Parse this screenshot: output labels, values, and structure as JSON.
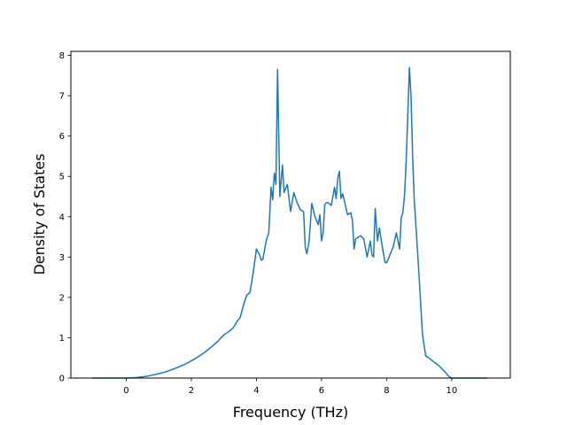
{
  "chart_data": {
    "type": "line",
    "xlabel": "Frequency (THz)",
    "ylabel": "Density of States",
    "xlim": [
      -1.7,
      11.8
    ],
    "ylim": [
      0,
      8.1
    ],
    "x_ticks": [
      0,
      2,
      4,
      6,
      8,
      10
    ],
    "y_ticks": [
      0,
      1,
      2,
      3,
      4,
      5,
      6,
      7,
      8
    ],
    "grid": false,
    "series": [
      {
        "color": "#1f77b4",
        "x": [
          -1.05,
          -0.5,
          0.0,
          0.3,
          0.6,
          0.9,
          1.2,
          1.5,
          1.8,
          2.1,
          2.4,
          2.6,
          2.8,
          3.0,
          3.2,
          3.3,
          3.4,
          3.5,
          3.6,
          3.7,
          3.8,
          3.9,
          4.0,
          4.1,
          4.15,
          4.2,
          4.3,
          4.38,
          4.45,
          4.5,
          4.55,
          4.6,
          4.65,
          4.72,
          4.8,
          4.85,
          4.95,
          5.05,
          5.15,
          5.25,
          5.35,
          5.45,
          5.5,
          5.55,
          5.62,
          5.7,
          5.8,
          5.9,
          5.95,
          6.0,
          6.05,
          6.1,
          6.15,
          6.2,
          6.3,
          6.4,
          6.45,
          6.5,
          6.55,
          6.6,
          6.65,
          6.72,
          6.8,
          6.9,
          6.95,
          7.0,
          7.05,
          7.1,
          7.15,
          7.2,
          7.3,
          7.4,
          7.5,
          7.55,
          7.6,
          7.65,
          7.72,
          7.78,
          7.82,
          7.88,
          7.95,
          8.0,
          8.05,
          8.1,
          8.2,
          8.3,
          8.4,
          8.45,
          8.5,
          8.55,
          8.6,
          8.65,
          8.7,
          8.75,
          8.8,
          8.85,
          8.9,
          9.0,
          9.1,
          9.2,
          9.3,
          9.4,
          9.6,
          9.8,
          9.9,
          10.0,
          10.1,
          10.2,
          10.5,
          11.1
        ],
        "y": [
          0.0,
          0.0,
          0.0,
          0.01,
          0.04,
          0.09,
          0.15,
          0.24,
          0.34,
          0.47,
          0.63,
          0.76,
          0.9,
          1.07,
          1.18,
          1.26,
          1.4,
          1.5,
          1.8,
          2.05,
          2.12,
          2.6,
          3.2,
          3.05,
          2.92,
          2.95,
          3.4,
          3.6,
          4.73,
          4.42,
          5.08,
          4.8,
          7.65,
          4.5,
          5.28,
          4.6,
          4.8,
          4.13,
          4.6,
          4.35,
          4.17,
          4.13,
          3.25,
          3.08,
          3.4,
          4.33,
          4.0,
          3.8,
          4.05,
          3.4,
          3.6,
          4.3,
          4.35,
          4.35,
          4.28,
          4.73,
          4.45,
          4.95,
          5.13,
          4.45,
          4.57,
          4.33,
          4.05,
          4.1,
          3.9,
          3.2,
          3.45,
          3.48,
          3.5,
          3.53,
          3.45,
          3.0,
          3.4,
          3.05,
          3.0,
          4.2,
          3.4,
          3.72,
          3.5,
          3.2,
          2.87,
          2.86,
          2.95,
          3.05,
          3.25,
          3.6,
          3.2,
          3.98,
          4.1,
          4.53,
          5.35,
          6.5,
          7.7,
          7.0,
          5.5,
          4.4,
          3.78,
          2.5,
          1.1,
          0.55,
          0.5,
          0.43,
          0.31,
          0.15,
          0.05,
          0.0,
          0.0,
          0.0,
          0.0,
          0.0
        ]
      }
    ]
  }
}
